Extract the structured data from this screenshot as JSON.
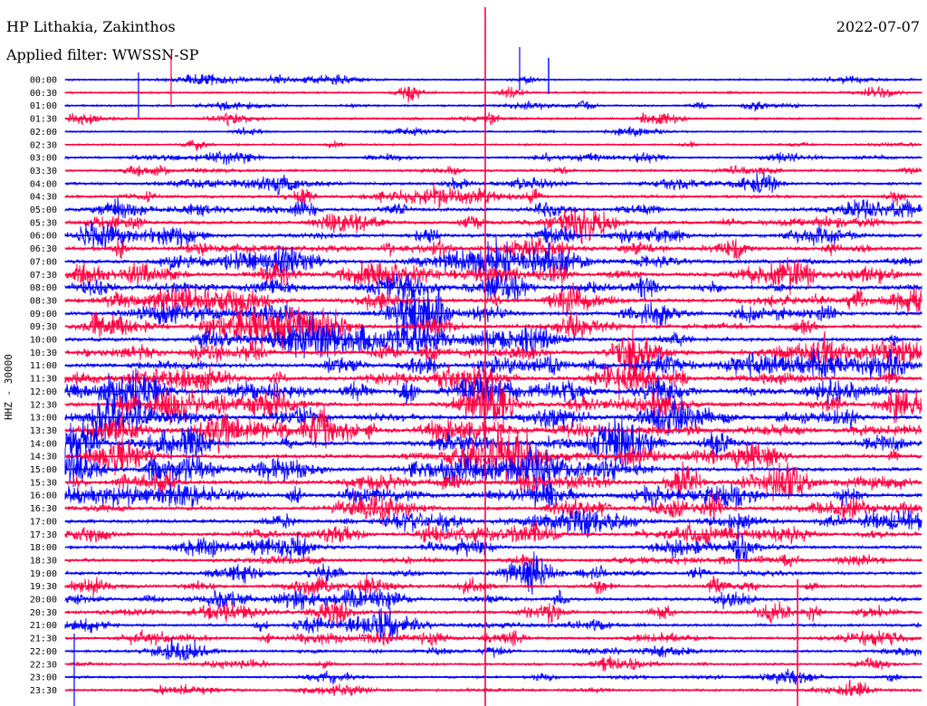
{
  "header": {
    "station": "HP Lithakia, Zakinthos",
    "filter": "Applied filter: WWSSN-SP",
    "date": "2022-07-07",
    "channel": "HHZ - 30000"
  },
  "colors": {
    "blue": "#0000ff",
    "red": "#ff0040",
    "background": "#ffffff"
  },
  "chart_data": {
    "type": "line",
    "title": "HP Lithakia, Zakinthos",
    "ylabel": "HHZ - 30000",
    "grid": false,
    "color_cycle": [
      "blue",
      "red"
    ],
    "time_labels": [
      "00:00",
      "00:30",
      "01:00",
      "01:30",
      "02:00",
      "02:30",
      "03:00",
      "03:30",
      "04:00",
      "04:30",
      "05:00",
      "05:30",
      "06:00",
      "06:30",
      "07:00",
      "07:30",
      "08:00",
      "08:30",
      "09:00",
      "09:30",
      "10:00",
      "10:30",
      "11:00",
      "11:30",
      "12:00",
      "12:30",
      "13:00",
      "13:30",
      "14:00",
      "14:30",
      "15:00",
      "15:30",
      "16:00",
      "16:30",
      "17:00",
      "17:30",
      "18:00",
      "18:30",
      "19:00",
      "19:30",
      "20:00",
      "20:30",
      "21:00",
      "21:30",
      "22:00",
      "22:30",
      "23:00",
      "23:30"
    ],
    "activity_level": [
      0.15,
      0.2,
      0.2,
      0.25,
      0.1,
      0.2,
      0.25,
      0.35,
      0.5,
      0.55,
      0.65,
      0.7,
      0.75,
      0.8,
      0.85,
      0.85,
      0.85,
      0.85,
      0.85,
      0.85,
      0.85,
      0.9,
      0.9,
      0.9,
      0.95,
      0.95,
      0.95,
      0.95,
      0.95,
      0.95,
      0.9,
      0.9,
      0.85,
      0.8,
      0.75,
      0.7,
      0.65,
      0.6,
      0.6,
      0.6,
      0.6,
      0.55,
      0.5,
      0.45,
      0.4,
      0.35,
      0.3,
      0.3
    ]
  }
}
